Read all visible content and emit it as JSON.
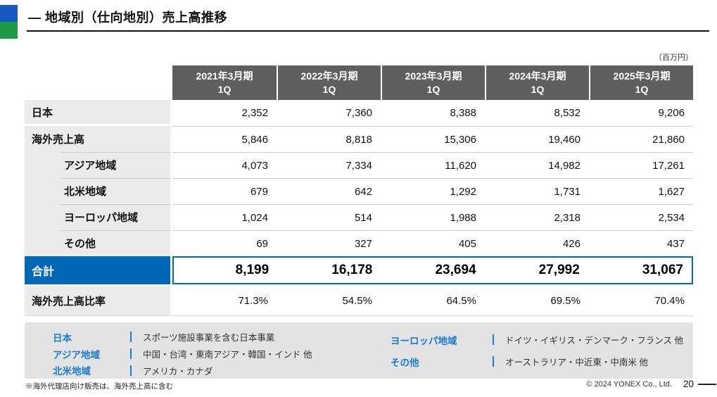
{
  "page": {
    "title": "― 地域別（仕向地別）売上高推移",
    "unit_note": "（百万円）",
    "footnote": "※海外代理店向け販売は、海外売上高に含む",
    "copyright": "© 2024 YONEX Co., Ltd.",
    "page_number": "20"
  },
  "table": {
    "col_headers": [
      {
        "period": "2021年3月期",
        "quarter": "1Q"
      },
      {
        "period": "2022年3月期",
        "quarter": "1Q"
      },
      {
        "period": "2023年3月期",
        "quarter": "1Q"
      },
      {
        "period": "2024年3月期",
        "quarter": "1Q"
      },
      {
        "period": "2025年3月期",
        "quarter": "1Q"
      }
    ],
    "rows": [
      {
        "label": "日本",
        "indent": false,
        "values": [
          "2,352",
          "7,360",
          "8,388",
          "8,532",
          "9,206"
        ]
      },
      {
        "label": "海外売上高",
        "indent": false,
        "values": [
          "5,846",
          "8,818",
          "15,306",
          "19,460",
          "21,860"
        ]
      },
      {
        "label": "アジア地域",
        "indent": true,
        "values": [
          "4,073",
          "7,334",
          "11,620",
          "14,982",
          "17,261"
        ]
      },
      {
        "label": "北米地域",
        "indent": true,
        "values": [
          "679",
          "642",
          "1,292",
          "1,731",
          "1,627"
        ]
      },
      {
        "label": "ヨーロッパ地域",
        "indent": true,
        "values": [
          "1,024",
          "514",
          "1,988",
          "2,318",
          "2,534"
        ]
      },
      {
        "label": "その他",
        "indent": true,
        "values": [
          "69",
          "327",
          "405",
          "426",
          "437"
        ]
      }
    ],
    "total_row": {
      "label": "合計",
      "values": [
        "8,199",
        "16,178",
        "23,694",
        "27,992",
        "31,067"
      ]
    },
    "ratio_row": {
      "label": "海外売上高比率",
      "values": [
        "71.3%",
        "54.5%",
        "64.5%",
        "69.5%",
        "70.4%"
      ]
    }
  },
  "legend": {
    "columns": [
      [
        {
          "region": "日本",
          "desc": "スポーツ施設事業を含む日本事業"
        },
        {
          "region": "アジア地域",
          "desc": "中国・台湾・東南アジア・韓国・インド 他"
        },
        {
          "region": "北米地域",
          "desc": "アメリカ・カナダ"
        }
      ],
      [
        {
          "region": "ヨーロッパ地域",
          "desc": "ドイツ・イギリス・デンマーク・フランス 他"
        },
        {
          "region": "その他",
          "desc": "オーストラリア・中近東・中南米 他"
        }
      ]
    ]
  },
  "colors": {
    "accent_blue": "#0068b7",
    "header_gray": "#5f5f5f",
    "label_gray": "#ebebeb",
    "legend_gray": "#e3e3e3",
    "legend_blue": "#1b7ad1",
    "logo_blue": "#1659c2",
    "logo_green": "#1d9b47"
  }
}
